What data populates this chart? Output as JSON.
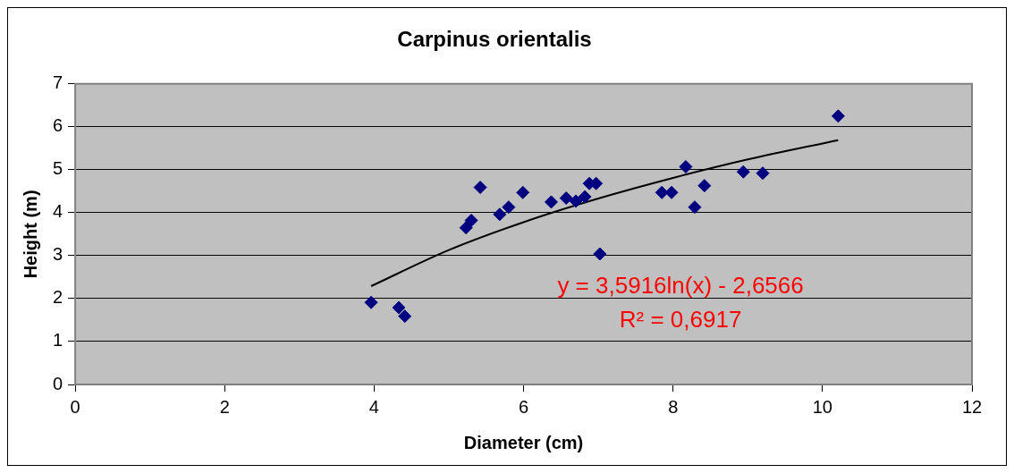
{
  "chart_data": {
    "type": "scatter",
    "title": "Carpinus orientalis",
    "xlabel": "Diameter (cm)",
    "ylabel": "Height (m)",
    "series": [
      {
        "color": "#000080",
        "x": [
          3.96,
          4.33,
          4.41,
          5.23,
          5.3,
          5.42,
          5.68,
          5.8,
          5.99,
          6.37,
          6.57,
          6.7,
          6.82,
          6.88,
          6.97,
          7.02,
          7.85,
          7.98,
          8.17,
          8.29,
          8.42,
          8.94,
          9.2,
          10.21
        ],
        "values": [
          1.91,
          1.79,
          1.59,
          3.65,
          3.82,
          4.59,
          3.96,
          4.13,
          4.47,
          4.25,
          4.34,
          4.27,
          4.37,
          4.68,
          4.68,
          3.04,
          4.47,
          4.47,
          5.07,
          4.13,
          4.63,
          4.95,
          4.92,
          6.25
        ]
      },
      {
        "type": "line",
        "marker": "none",
        "color": "#000000",
        "x": [
          3.96,
          5,
          6,
          7,
          8,
          9,
          10.21
        ],
        "values": [
          2.29,
          3.13,
          3.78,
          4.33,
          4.81,
          5.24,
          5.69
        ]
      }
    ],
    "annotations": [
      "y = 3,5916ln(x) - 2,6566",
      "R² = 0,6917"
    ],
    "xlim": [
      0,
      12
    ],
    "xticks": [
      0,
      2,
      4,
      6,
      8,
      10,
      12
    ],
    "ylim": [
      0,
      7
    ],
    "yticks": [
      0,
      1,
      2,
      3,
      4,
      5,
      6,
      7
    ],
    "grid": "y",
    "marker": "diamond",
    "legend": false
  }
}
